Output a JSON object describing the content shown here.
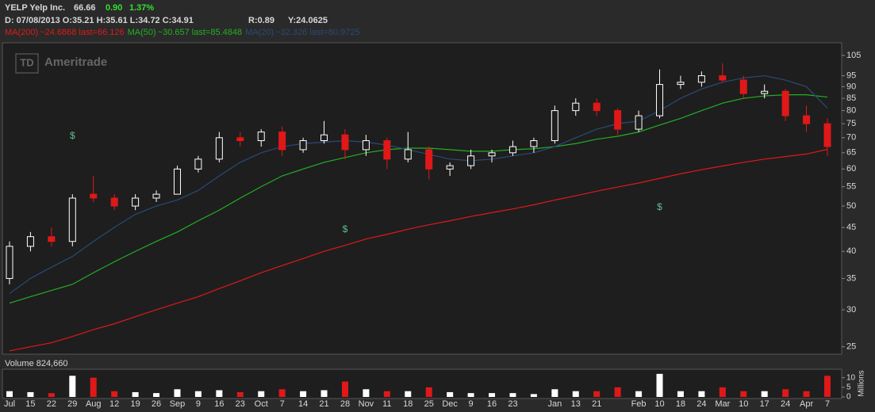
{
  "header": {
    "symbol": "YELP Yelp Inc.",
    "last": "66.66",
    "change": "0.90",
    "change_pct": "1.37%",
    "bar_info": "D: 07/08/2013 O:35.21 H:35.61 L:34.72 C:34.91",
    "range": "R:0.89",
    "y_value": "Y:24.0625",
    "watermark_logo": "TD",
    "watermark": "Ameritrade"
  },
  "chart_data": {
    "type": "candlestick",
    "log_scale": true,
    "up_color": "#ffffff",
    "down_color": "#e01818",
    "categories": [
      "Jul",
      "15",
      "22",
      "29",
      "Aug",
      "12",
      "19",
      "26",
      "Sep",
      "9",
      "16",
      "23",
      "Oct",
      "7",
      "14",
      "21",
      "28",
      "Nov",
      "11",
      "18",
      "25",
      "Dec",
      "9",
      "16",
      "23",
      null,
      "Jan",
      "13",
      "21",
      null,
      "Feb",
      "10",
      "18",
      "24",
      "Mar",
      "10",
      "17",
      "24",
      "Apr",
      "7"
    ],
    "open": [
      35,
      41,
      43,
      42,
      53,
      52,
      50,
      52,
      53,
      60,
      63,
      70,
      69,
      72,
      66,
      69,
      71,
      66,
      69,
      63,
      66,
      60,
      61,
      64,
      65,
      67,
      69,
      80,
      83,
      80,
      73,
      78,
      91,
      92,
      95,
      93,
      87,
      88,
      78,
      75
    ],
    "high": [
      42,
      44,
      45,
      53,
      58,
      53,
      53,
      54,
      61,
      64,
      72,
      72,
      73,
      74,
      70,
      76,
      73,
      71,
      70,
      72,
      67,
      62,
      66,
      66,
      69,
      70,
      82,
      85,
      85,
      81,
      80,
      98,
      95,
      97,
      101,
      95,
      91,
      89,
      82,
      77
    ],
    "low": [
      34,
      40,
      41,
      41,
      51,
      49,
      49,
      51,
      53,
      59,
      62,
      67,
      67,
      64,
      65,
      68,
      63,
      64,
      60,
      62,
      57,
      58,
      60,
      62,
      64,
      65,
      68,
      78,
      78,
      71,
      72,
      77,
      89,
      90,
      92,
      85,
      85,
      76,
      72,
      64
    ],
    "close": [
      41,
      43,
      42,
      52,
      52,
      50,
      52,
      53,
      60,
      63,
      70,
      69,
      72,
      66,
      69,
      71,
      66,
      69,
      63,
      66,
      60,
      61,
      64,
      65,
      67,
      69,
      80,
      83,
      80,
      73,
      78,
      91,
      92,
      95,
      93,
      87,
      88,
      78,
      75,
      67
    ],
    "ylim": [
      24.2,
      111.3
    ],
    "yticks": [
      25,
      30,
      35,
      40,
      45,
      50,
      55,
      60,
      65,
      70,
      75,
      80,
      85,
      90,
      95,
      105
    ],
    "moving_averages": [
      {
        "name": "MA(200)",
        "label": "~24.6868 last=66.126",
        "color": "#e01818",
        "values": [
          24.5,
          25,
          25.5,
          26.3,
          27.2,
          28,
          29,
          30,
          31,
          32,
          33.3,
          34.6,
          36,
          37.3,
          38.6,
          40,
          41.2,
          42.5,
          43.5,
          44.6,
          45.6,
          46.5,
          47.5,
          48.4,
          49.3,
          50.3,
          51.5,
          52.6,
          53.8,
          54.9,
          56,
          57.3,
          58.6,
          59.8,
          60.9,
          62,
          63,
          63.8,
          64.6,
          66.1
        ]
      },
      {
        "name": "MA(50)",
        "label": "~30.657 last=85.4848",
        "color": "#22b022",
        "values": [
          31,
          32,
          33,
          34,
          36,
          38,
          40,
          42,
          44,
          46.5,
          49,
          52,
          55,
          58,
          60,
          62,
          63.5,
          65,
          66,
          66.5,
          66.5,
          66,
          65.5,
          65.5,
          66,
          66.3,
          67,
          68,
          69.5,
          70.5,
          72,
          74.5,
          77,
          80,
          83,
          85,
          86,
          86.5,
          86.5,
          85.5
        ]
      },
      {
        "name": "MA(20)",
        "label": "~32.326 last=80.9725",
        "color": "#2a4a78",
        "values": [
          32.5,
          35,
          37,
          39,
          42,
          45,
          48,
          50,
          51.5,
          54,
          58,
          62,
          65,
          67,
          68,
          68.5,
          69,
          68.5,
          67.5,
          66,
          64.5,
          63,
          62.5,
          63,
          64,
          65,
          67,
          70,
          73,
          75,
          76,
          80,
          85,
          89,
          92,
          94,
          95,
          93,
          90,
          81
        ]
      }
    ],
    "annotations": [
      {
        "label": "$",
        "at": "Jul29"
      },
      {
        "label": "$",
        "at": "Oct28"
      },
      {
        "label": "$",
        "at": "Feb10"
      }
    ],
    "volume_title": "Volume 824,660",
    "volume_axis_label": "Millions",
    "volume": [
      3,
      2.5,
      2,
      11,
      10,
      3,
      2.5,
      2,
      4,
      3,
      3.5,
      2.5,
      3,
      4,
      3,
      3.5,
      8,
      4,
      3,
      3,
      5,
      2.5,
      2,
      2,
      2,
      1.5,
      4,
      3,
      3,
      5,
      3,
      12,
      3,
      3,
      5,
      3,
      3,
      4,
      3,
      11
    ],
    "volume_ylim": [
      0,
      14
    ],
    "volume_yticks": [
      0,
      5,
      10
    ]
  }
}
